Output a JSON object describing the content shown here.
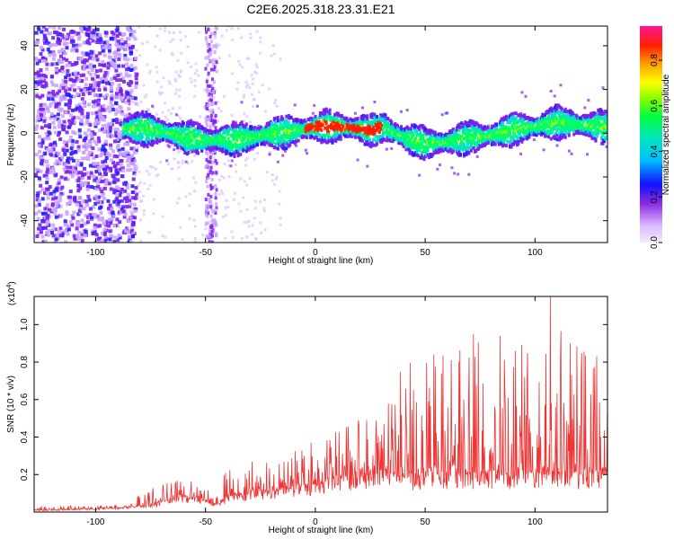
{
  "title": "C2E6.2025.318.23.31.E21",
  "chart_data": [
    {
      "type": "heatmap",
      "title": "C2E6.2025.318.23.31.E21",
      "xlabel": "Height of straight line (km)",
      "ylabel": "Frequency (Hz)",
      "xlim": [
        -128,
        133
      ],
      "ylim": [
        -50,
        49
      ],
      "xticks": [
        -100,
        -50,
        0,
        50,
        100
      ],
      "yticks": [
        -40,
        -20,
        0,
        20,
        40
      ],
      "colorbar": {
        "label": "Normalized spectral amplitude",
        "range": [
          0,
          0.95
        ],
        "ticks": [
          0.0,
          0.2,
          0.4,
          0.6,
          0.8
        ],
        "tick_labels": [
          "0.0",
          "0.2",
          "0.4",
          "0.6",
          "0.8"
        ],
        "colors": [
          "#f0e4ff",
          "#8a2be2",
          "#0000ff",
          "#00bfff",
          "#00ff7f",
          "#7fff00",
          "#ffff00",
          "#ffa500",
          "#ff0000",
          "#ff1493"
        ]
      },
      "ridge": {
        "x": [
          -90,
          -80,
          -70,
          -60,
          -50,
          -40,
          -30,
          -20,
          -10,
          0,
          10,
          20,
          25,
          30,
          40,
          50,
          60,
          70,
          80,
          90,
          100,
          110,
          120,
          130
        ],
        "y": [
          2,
          2,
          1,
          -2,
          -3,
          -3,
          -2,
          0,
          1,
          3,
          3,
          2,
          1,
          3,
          -2,
          -5,
          -4,
          -2,
          -1,
          2,
          3,
          5,
          4,
          3
        ]
      },
      "broadband_noise_below_km": -86,
      "broadband_spike_at_km": -48
    },
    {
      "type": "line",
      "xlabel": "Height of straight line (km)",
      "ylabel": "SNR (10 * v/v)",
      "multiplier_label": "(x10",
      "multiplier_exp": "4",
      "multiplier_close": ")",
      "xlim": [
        -128,
        133
      ],
      "ylim": [
        0,
        1.15
      ],
      "xticks": [
        -100,
        -50,
        0,
        50,
        100
      ],
      "yticks": [
        0.2,
        0.4,
        0.6,
        0.8,
        1.0
      ],
      "ytick_labels": [
        "0.2",
        "0.4",
        "0.6",
        "0.8",
        "1.0"
      ],
      "color": "#ee3333",
      "envelope": {
        "x": [
          -128,
          -90,
          -80,
          -70,
          -60,
          -50,
          -45,
          -40,
          -30,
          -20,
          -10,
          0,
          10,
          20,
          30,
          40,
          50,
          60,
          70,
          80,
          90,
          100,
          110,
          120,
          133
        ],
        "base": [
          0.01,
          0.02,
          0.03,
          0.05,
          0.08,
          0.07,
          0.04,
          0.08,
          0.1,
          0.11,
          0.13,
          0.15,
          0.17,
          0.2,
          0.22,
          0.18,
          0.2,
          0.2,
          0.2,
          0.2,
          0.2,
          0.2,
          0.2,
          0.2,
          0.2
        ],
        "peak": [
          0.03,
          0.04,
          0.1,
          0.15,
          0.18,
          0.16,
          0.08,
          0.25,
          0.27,
          0.3,
          0.33,
          0.4,
          0.45,
          0.52,
          0.55,
          0.8,
          0.82,
          0.9,
          0.92,
          0.9,
          0.88,
          0.92,
          1.02,
          0.95,
          0.7
        ]
      },
      "spikes": [
        {
          "x": 54,
          "y": 0.84
        },
        {
          "x": 72,
          "y": 0.95
        },
        {
          "x": 84,
          "y": 0.94
        },
        {
          "x": 107,
          "y": 1.16
        },
        {
          "x": 116,
          "y": 0.9
        },
        {
          "x": 121,
          "y": 0.75
        },
        {
          "x": 128,
          "y": 0.83
        }
      ]
    }
  ]
}
